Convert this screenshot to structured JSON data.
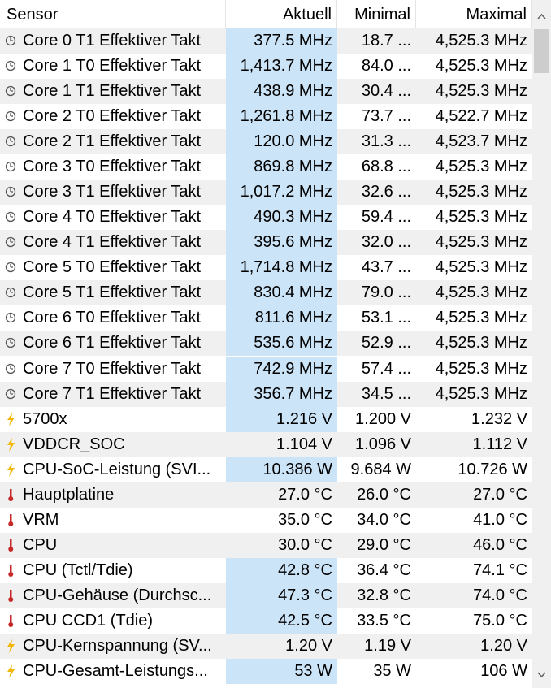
{
  "table": {
    "header": [
      "Sensor",
      "Aktuell",
      "Minimal",
      "Maximal"
    ],
    "rows": [
      {
        "icon": "clock",
        "highlight": true,
        "cells": [
          "Core 0 T1 Effektiver Takt",
          "377.5 MHz",
          "18.7 ...",
          "4,525.3 MHz"
        ]
      },
      {
        "icon": "clock",
        "highlight": true,
        "cells": [
          "Core 1 T0 Effektiver Takt",
          "1,413.7 MHz",
          "84.0 ...",
          "4,525.3 MHz"
        ]
      },
      {
        "icon": "clock",
        "highlight": true,
        "cells": [
          "Core 1 T1 Effektiver Takt",
          "438.9 MHz",
          "30.4 ...",
          "4,525.3 MHz"
        ]
      },
      {
        "icon": "clock",
        "highlight": true,
        "cells": [
          "Core 2 T0 Effektiver Takt",
          "1,261.8 MHz",
          "73.7 ...",
          "4,522.7 MHz"
        ]
      },
      {
        "icon": "clock",
        "highlight": true,
        "cells": [
          "Core 2 T1 Effektiver Takt",
          "120.0 MHz",
          "31.3 ...",
          "4,523.7 MHz"
        ]
      },
      {
        "icon": "clock",
        "highlight": true,
        "cells": [
          "Core 3 T0 Effektiver Takt",
          "869.8 MHz",
          "68.8 ...",
          "4,525.3 MHz"
        ]
      },
      {
        "icon": "clock",
        "highlight": true,
        "cells": [
          "Core 3 T1 Effektiver Takt",
          "1,017.2 MHz",
          "32.6 ...",
          "4,525.3 MHz"
        ]
      },
      {
        "icon": "clock",
        "highlight": true,
        "cells": [
          "Core 4 T0 Effektiver Takt",
          "490.3 MHz",
          "59.4 ...",
          "4,525.3 MHz"
        ]
      },
      {
        "icon": "clock",
        "highlight": true,
        "cells": [
          "Core 4 T1 Effektiver Takt",
          "395.6 MHz",
          "32.0 ...",
          "4,525.3 MHz"
        ]
      },
      {
        "icon": "clock",
        "highlight": true,
        "cells": [
          "Core 5 T0 Effektiver Takt",
          "1,714.8 MHz",
          "43.7 ...",
          "4,525.3 MHz"
        ]
      },
      {
        "icon": "clock",
        "highlight": true,
        "cells": [
          "Core 5 T1 Effektiver Takt",
          "830.4 MHz",
          "79.0 ...",
          "4,525.3 MHz"
        ]
      },
      {
        "icon": "clock",
        "highlight": true,
        "cells": [
          "Core 6 T0 Effektiver Takt",
          "811.6 MHz",
          "53.1 ...",
          "4,525.3 MHz"
        ]
      },
      {
        "icon": "clock",
        "highlight": true,
        "cells": [
          "Core 6 T1 Effektiver Takt",
          "535.6 MHz",
          "52.9 ...",
          "4,525.3 MHz"
        ]
      },
      {
        "icon": "clock",
        "highlight": true,
        "cells": [
          "Core 7 T0 Effektiver Takt",
          "742.9 MHz",
          "57.4 ...",
          "4,525.3 MHz"
        ]
      },
      {
        "icon": "clock",
        "highlight": true,
        "cells": [
          "Core 7 T1 Effektiver Takt",
          "356.7 MHz",
          "34.5 ...",
          "4,525.3 MHz"
        ]
      },
      {
        "icon": "volt",
        "highlight": true,
        "cells": [
          "5700x",
          "1.216 V",
          "1.200 V",
          "1.232 V"
        ]
      },
      {
        "icon": "volt",
        "highlight": false,
        "cells": [
          "VDDCR_SOC",
          "1.104 V",
          "1.096 V",
          "1.112 V"
        ]
      },
      {
        "icon": "volt",
        "highlight": true,
        "cells": [
          "CPU-SoC-Leistung (SVI...",
          "10.386 W",
          "9.684 W",
          "10.726 W"
        ]
      },
      {
        "icon": "temp",
        "highlight": false,
        "cells": [
          "Hauptplatine",
          "27.0 °C",
          "26.0 °C",
          "27.0 °C"
        ]
      },
      {
        "icon": "temp",
        "highlight": false,
        "cells": [
          "VRM",
          "35.0 °C",
          "34.0 °C",
          "41.0 °C"
        ]
      },
      {
        "icon": "temp",
        "highlight": false,
        "cells": [
          "CPU",
          "30.0 °C",
          "29.0 °C",
          "46.0 °C"
        ]
      },
      {
        "icon": "temp",
        "highlight": true,
        "cells": [
          "CPU (Tctl/Tdie)",
          "42.8 °C",
          "36.4 °C",
          "74.1 °C"
        ]
      },
      {
        "icon": "temp",
        "highlight": true,
        "cells": [
          "CPU-Gehäuse (Durchsc...",
          "47.3 °C",
          "32.8 °C",
          "74.0 °C"
        ]
      },
      {
        "icon": "temp",
        "highlight": true,
        "cells": [
          "CPU CCD1 (Tdie)",
          "42.5 °C",
          "33.5 °C",
          "75.0 °C"
        ]
      },
      {
        "icon": "volt",
        "highlight": false,
        "cells": [
          "CPU-Kernspannung (SV...",
          "1.20 V",
          "1.19 V",
          "1.20 V"
        ]
      },
      {
        "icon": "volt",
        "highlight": true,
        "cells": [
          "CPU-Gesamt-Leistungs...",
          "53 W",
          "35 W",
          "106 W"
        ]
      }
    ]
  }
}
